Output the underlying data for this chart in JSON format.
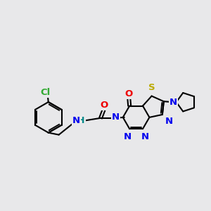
{
  "bg_color": "#e8e8ea",
  "bond_color": "#000000",
  "bond_lw": 1.5,
  "atom_colors": {
    "N": "#0000ee",
    "S": "#bbaa00",
    "O": "#ee0000",
    "Cl": "#33aa33",
    "H": "#008888",
    "C": "#000000"
  },
  "font_size": 9.5,
  "fig_size": [
    3.0,
    3.0
  ],
  "dpi": 100
}
